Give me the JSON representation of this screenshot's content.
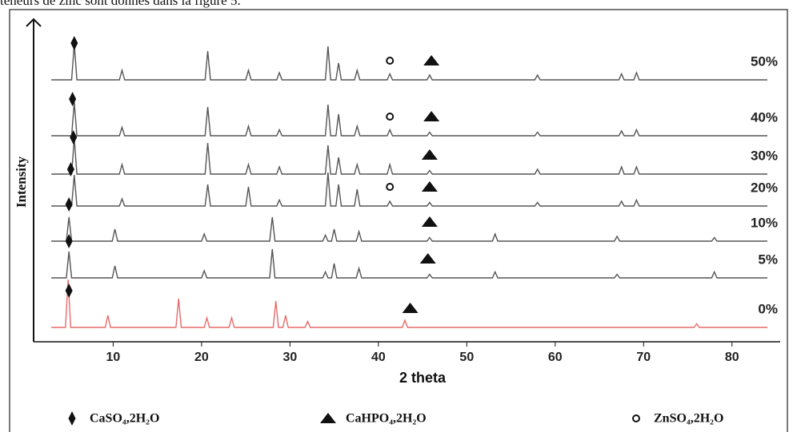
{
  "caption_fragment": "teneurs de zinc  sont donnés dans la figure 5.",
  "chart_data": {
    "type": "line",
    "xlabel": "2 theta",
    "ylabel": "Intensity",
    "xlim": [
      1,
      85
    ],
    "xticks": [
      10,
      20,
      30,
      40,
      50,
      60,
      70,
      80
    ],
    "phases": [
      {
        "name": "CaSO₄,2H₂O",
        "symbol": "diamond"
      },
      {
        "name": "CaHPO₄,2H₂O",
        "symbol": "triangle"
      },
      {
        "name": "ZnSO₄,2H₂O",
        "symbol": "circle"
      }
    ],
    "series": [
      {
        "name": "50%",
        "color": "#555555",
        "x": [
          3,
          5.3,
          5.6,
          5.9,
          10.7,
          11,
          11.3,
          20.4,
          20.7,
          21,
          25,
          25.3,
          25.6,
          28.5,
          28.8,
          29.1,
          34,
          34.3,
          34.6,
          35.2,
          35.5,
          35.8,
          37.3,
          37.6,
          37.9,
          41,
          41.3,
          41.6,
          45.5,
          45.8,
          46.1,
          57.7,
          58,
          58.3,
          67.2,
          67.5,
          67.8,
          68.9,
          69.2,
          69.5,
          84
        ],
        "values": [
          0,
          0,
          30,
          0,
          0,
          8,
          0,
          0,
          24,
          0,
          0,
          8,
          0,
          0,
          6,
          0,
          0,
          28,
          0,
          0,
          14,
          0,
          0,
          8,
          0,
          0,
          5,
          0,
          0,
          4,
          0,
          0,
          4,
          0,
          0,
          5,
          0,
          0,
          6,
          0,
          0
        ],
        "phase_marks": [
          {
            "phase": 0,
            "x": 5.6
          },
          {
            "phase": 2,
            "x": 41.3
          },
          {
            "phase": 1,
            "x": 46
          }
        ]
      },
      {
        "name": "40%",
        "color": "#555555",
        "x": [
          3,
          5.3,
          5.6,
          5.9,
          10.7,
          11,
          11.3,
          20.4,
          20.7,
          21,
          25,
          25.3,
          25.6,
          28.5,
          28.8,
          29.1,
          34,
          34.3,
          34.6,
          35.2,
          35.5,
          35.8,
          37.3,
          37.6,
          37.9,
          41,
          41.3,
          41.6,
          45.5,
          45.8,
          46.1,
          57.7,
          58,
          58.3,
          67.2,
          67.5,
          67.8,
          68.9,
          69.2,
          69.5,
          84
        ],
        "values": [
          0,
          0,
          28,
          0,
          0,
          7,
          0,
          0,
          24,
          0,
          0,
          8,
          0,
          0,
          5,
          0,
          0,
          26,
          0,
          0,
          18,
          0,
          0,
          8,
          0,
          0,
          5,
          0,
          0,
          3,
          0,
          0,
          3,
          0,
          0,
          4,
          0,
          0,
          5,
          0,
          0
        ],
        "phase_marks": [
          {
            "phase": 0,
            "x": 5.4
          },
          {
            "phase": 2,
            "x": 41.3
          },
          {
            "phase": 1,
            "x": 46
          }
        ]
      },
      {
        "name": "30%",
        "color": "#555555",
        "x": [
          3,
          5.3,
          5.6,
          5.9,
          10.7,
          11,
          11.3,
          20.4,
          20.7,
          21,
          25,
          25.3,
          25.6,
          28.5,
          28.8,
          29.1,
          34,
          34.3,
          34.6,
          35.2,
          35.5,
          35.8,
          37.3,
          37.6,
          37.9,
          41,
          41.3,
          41.6,
          45.5,
          45.8,
          46.1,
          57.7,
          58,
          58.3,
          67.2,
          67.5,
          67.8,
          68.9,
          69.2,
          69.5,
          84
        ],
        "values": [
          0,
          0,
          30,
          0,
          0,
          8,
          0,
          0,
          26,
          0,
          0,
          8,
          0,
          0,
          6,
          0,
          0,
          24,
          0,
          0,
          14,
          0,
          0,
          8,
          0,
          0,
          8,
          0,
          0,
          3,
          0,
          0,
          4,
          0,
          0,
          6,
          0,
          0,
          6,
          0,
          0
        ],
        "phase_marks": [
          {
            "phase": 0,
            "x": 5.5
          },
          {
            "phase": 1,
            "x": 45.8
          }
        ]
      },
      {
        "name": "20%",
        "color": "#555555",
        "x": [
          3,
          5.3,
          5.6,
          5.9,
          10.7,
          11,
          11.3,
          20.4,
          20.7,
          21,
          25,
          25.3,
          25.6,
          28.5,
          28.8,
          29.1,
          34,
          34.3,
          34.6,
          35.2,
          35.5,
          35.8,
          37.3,
          37.6,
          37.9,
          41,
          41.3,
          41.6,
          45.5,
          45.8,
          46.1,
          57.7,
          58,
          58.3,
          67.2,
          67.5,
          67.8,
          68.9,
          69.2,
          69.5,
          84
        ],
        "values": [
          0,
          0,
          26,
          0,
          0,
          6,
          0,
          0,
          18,
          0,
          0,
          16,
          0,
          0,
          5,
          0,
          0,
          28,
          0,
          0,
          18,
          0,
          0,
          14,
          0,
          0,
          4,
          0,
          0,
          3,
          0,
          0,
          3,
          0,
          0,
          4,
          0,
          0,
          5,
          0,
          0
        ],
        "phase_marks": [
          {
            "phase": 0,
            "x": 5.2
          },
          {
            "phase": 2,
            "x": 41.3
          },
          {
            "phase": 1,
            "x": 45.8
          }
        ]
      },
      {
        "name": "10%",
        "color": "#555555",
        "x": [
          3,
          4.7,
          5,
          5.3,
          9.9,
          10.2,
          10.5,
          20,
          20.3,
          20.6,
          27.7,
          28,
          28.3,
          33.7,
          34,
          34.3,
          34.7,
          35,
          35.3,
          37.5,
          37.8,
          38.1,
          45.5,
          45.8,
          46.1,
          52.9,
          53.2,
          53.5,
          66.7,
          67,
          67.3,
          77.7,
          78,
          78.3,
          84
        ],
        "values": [
          0,
          0,
          20,
          0,
          0,
          10,
          0,
          0,
          6,
          0,
          0,
          20,
          0,
          0,
          5,
          0,
          0,
          10,
          0,
          0,
          8,
          0,
          0,
          3,
          0,
          0,
          6,
          0,
          0,
          4,
          0,
          0,
          3,
          0,
          0
        ],
        "phase_marks": [
          {
            "phase": 0,
            "x": 5
          },
          {
            "phase": 1,
            "x": 45.8
          }
        ]
      },
      {
        "name": "5%",
        "color": "#555555",
        "x": [
          3,
          4.7,
          5,
          5.3,
          9.9,
          10.2,
          10.5,
          20,
          20.3,
          20.6,
          27.7,
          28,
          28.3,
          33.7,
          34,
          34.3,
          34.7,
          35,
          35.3,
          37.5,
          37.8,
          38.1,
          45.5,
          45.8,
          46.1,
          52.9,
          53.2,
          53.5,
          66.7,
          67,
          67.3,
          77.7,
          78,
          78.3,
          84
        ],
        "values": [
          0,
          0,
          22,
          0,
          0,
          10,
          0,
          0,
          6,
          0,
          0,
          24,
          0,
          0,
          5,
          0,
          0,
          12,
          0,
          0,
          8,
          0,
          0,
          3,
          0,
          0,
          5,
          0,
          0,
          3,
          0,
          0,
          5,
          0,
          0
        ],
        "phase_marks": [
          {
            "phase": 0,
            "x": 5
          },
          {
            "phase": 1,
            "x": 45.6
          }
        ]
      },
      {
        "name": "0%",
        "color": "#e86a6a",
        "x": [
          3,
          4.6,
          4.9,
          5.2,
          9.1,
          9.4,
          9.7,
          17.1,
          17.4,
          17.7,
          20.3,
          20.6,
          20.9,
          23.1,
          23.4,
          23.7,
          28.1,
          28.4,
          28.7,
          29.2,
          29.5,
          29.8,
          31.7,
          32,
          32.3,
          42.7,
          43,
          43.3,
          75.7,
          76,
          76.3,
          84
        ],
        "values": [
          0,
          0,
          40,
          0,
          0,
          10,
          0,
          0,
          24,
          0,
          0,
          8,
          0,
          0,
          8,
          0,
          0,
          22,
          0,
          0,
          10,
          0,
          0,
          5,
          0,
          0,
          6,
          0,
          0,
          3,
          0,
          0
        ],
        "phase_marks": [
          {
            "phase": 0,
            "x": 5
          },
          {
            "phase": 1,
            "x": 43.6
          }
        ]
      }
    ]
  }
}
